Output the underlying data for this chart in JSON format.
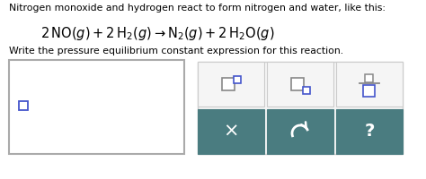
{
  "title_line1": "Nitrogen monoxide and hydrogen react to form nitrogen and water, like this:",
  "instruction": "Write the pressure equilibrium constant expression for this reaction.",
  "bg_color": "#ffffff",
  "text_color": "#000000",
  "box_border_color": "#aaaaaa",
  "blue_color": "#4455cc",
  "gray_color": "#888888",
  "teal_color": "#4a7c80",
  "white": "#ffffff",
  "panel_bg": "#f5f5f5",
  "panel_border": "#cccccc",
  "title_fontsize": 7.8,
  "instr_fontsize": 7.8,
  "eq_fontsize": 10.5
}
